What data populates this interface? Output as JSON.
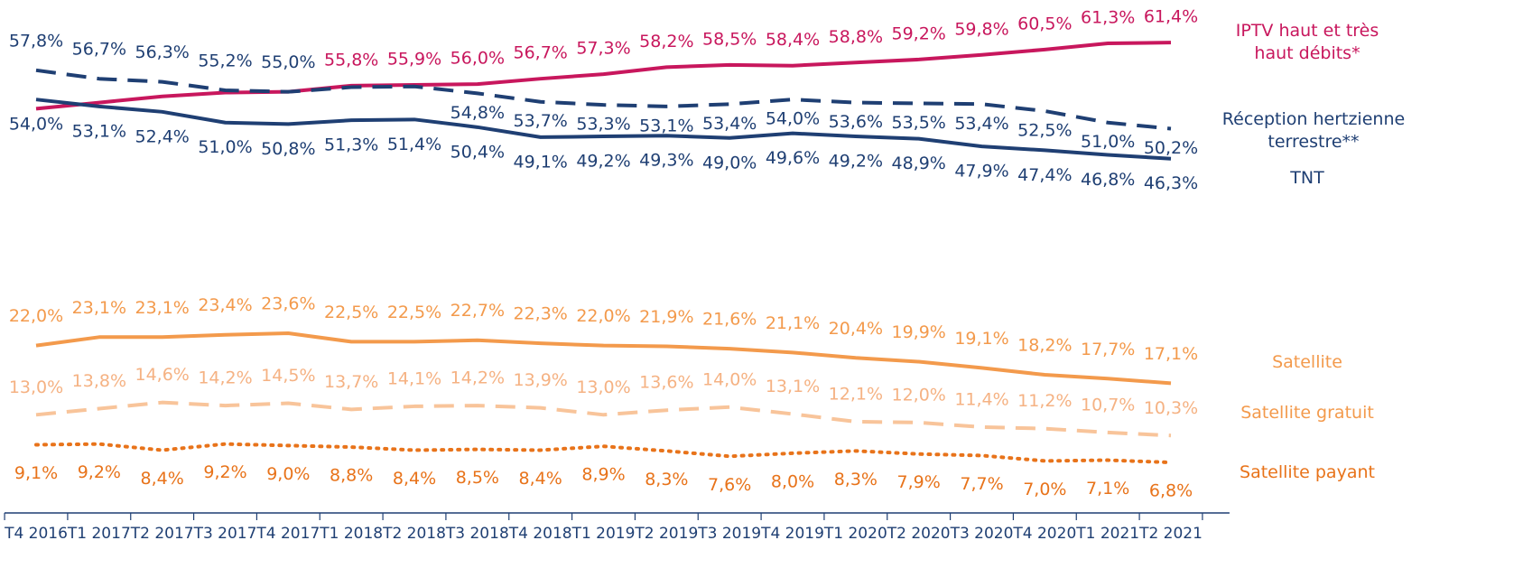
{
  "chart_data": {
    "type": "line",
    "categories": [
      "T4 2016",
      "T1 2017",
      "T2 2017",
      "T3 2017",
      "T4 2017",
      "T1 2018",
      "T2 2018",
      "T3 2018",
      "T4 2018",
      "T1 2019",
      "T2 2019",
      "T3 2019",
      "T4 2019",
      "T1 2020",
      "T2 2020",
      "T3 2020",
      "T4 2020",
      "T1 2021",
      "T2 2021"
    ],
    "ylim": [
      0,
      66
    ],
    "series": [
      {
        "name": "IPTV haut et très haut débits*",
        "color": "#c8175d",
        "style": "solid",
        "values": [
          52.8,
          53.6,
          54.4,
          54.9,
          55.0,
          55.8,
          55.9,
          56.0,
          56.7,
          57.3,
          58.2,
          58.5,
          58.4,
          58.8,
          59.2,
          59.8,
          60.5,
          61.3,
          61.4
        ],
        "value_labels": [
          null,
          null,
          null,
          null,
          null,
          "55,8%",
          "55,9%",
          "56,0%",
          "56,7%",
          "57,3%",
          "58,2%",
          "58,5%",
          "58,4%",
          "58,8%",
          "59,2%",
          "59,8%",
          "60,5%",
          "61,3%",
          "61,4%"
        ]
      },
      {
        "name": "Réception hertzienne terrestre**",
        "color": "#1f3f73",
        "style": "dashed",
        "values": [
          57.8,
          56.7,
          56.3,
          55.2,
          55.0,
          55.6,
          55.7,
          54.8,
          53.7,
          53.3,
          53.1,
          53.4,
          54.0,
          53.6,
          53.5,
          53.4,
          52.5,
          51.0,
          50.2
        ],
        "value_labels": [
          "57,8%",
          "56,7%",
          "56,3%",
          "55,2%",
          "55,0%",
          null,
          null,
          "54,8%",
          "53,7%",
          "53,3%",
          "53,1%",
          "53,4%",
          "54,0%",
          "53,6%",
          "53,5%",
          "53,4%",
          "52,5%",
          "51,0%",
          "50,2%"
        ]
      },
      {
        "name": "TNT",
        "color": "#1f3f73",
        "style": "solid",
        "values": [
          54.0,
          53.1,
          52.4,
          51.0,
          50.8,
          51.3,
          51.4,
          50.4,
          49.1,
          49.2,
          49.3,
          49.0,
          49.6,
          49.2,
          48.9,
          47.9,
          47.4,
          46.8,
          46.3
        ],
        "value_labels": [
          "54,0%",
          "53,1%",
          "52,4%",
          "51,0%",
          "50,8%",
          "51,3%",
          "51,4%",
          "50,4%",
          "49,1%",
          "49,2%",
          "49,3%",
          "49,0%",
          "49,6%",
          "49,2%",
          "48,9%",
          "47,9%",
          "47,4%",
          "46,8%",
          "46,3%"
        ]
      },
      {
        "name": "Satellite",
        "color": "#f39a4c",
        "style": "solid",
        "values": [
          22.0,
          23.1,
          23.1,
          23.4,
          23.6,
          22.5,
          22.5,
          22.7,
          22.3,
          22.0,
          21.9,
          21.6,
          21.1,
          20.4,
          19.9,
          19.1,
          18.2,
          17.7,
          17.1
        ],
        "value_labels": [
          "22,0%",
          "23,1%",
          "23,1%",
          "23,4%",
          "23,6%",
          "22,5%",
          "22,5%",
          "22,7%",
          "22,3%",
          "22,0%",
          "21,9%",
          "21,6%",
          "21,1%",
          "20,4%",
          "19,9%",
          "19,1%",
          "18,2%",
          "17,7%",
          "17,1%"
        ]
      },
      {
        "name": "Satellite gratuit",
        "color": "#f8c49a",
        "style": "dashed",
        "values": [
          13.0,
          13.8,
          14.6,
          14.2,
          14.5,
          13.7,
          14.1,
          14.2,
          13.9,
          13.0,
          13.6,
          14.0,
          13.1,
          12.1,
          12.0,
          11.4,
          11.2,
          10.7,
          10.3
        ],
        "value_labels": [
          "13,0%",
          "13,8%",
          "14,6%",
          "14,2%",
          "14,5%",
          "13,7%",
          "14,1%",
          "14,2%",
          "13,9%",
          "13,0%",
          "13,6%",
          "14,0%",
          "13,1%",
          "12,1%",
          "12,0%",
          "11,4%",
          "11,2%",
          "10,7%",
          "10,3%"
        ]
      },
      {
        "name": "Satellite payant",
        "color": "#e8731a",
        "style": "dotted",
        "values": [
          9.1,
          9.2,
          8.4,
          9.2,
          9.0,
          8.8,
          8.4,
          8.5,
          8.4,
          8.9,
          8.3,
          7.6,
          8.0,
          8.3,
          7.9,
          7.7,
          7.0,
          7.1,
          6.8
        ],
        "value_labels": [
          "9,1%",
          "9,2%",
          "8,4%",
          "9,2%",
          "9,0%",
          "8,8%",
          "8,4%",
          "8,5%",
          "8,4%",
          "8,9%",
          "8,3%",
          "7,6%",
          "8,0%",
          "8,3%",
          "7,9%",
          "7,7%",
          "7,0%",
          "7,1%",
          "6,8%"
        ]
      }
    ]
  }
}
